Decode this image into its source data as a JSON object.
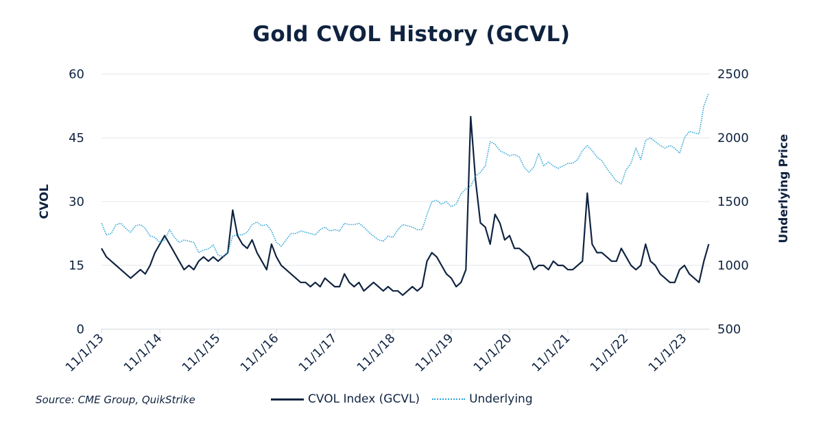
{
  "chart_data": {
    "type": "line",
    "title": "Gold CVOL History (GCVL)",
    "ylabel": "CVOL",
    "y2label": "Underlying Price",
    "ylim": [
      0,
      60
    ],
    "y2lim": [
      500,
      2500
    ],
    "yticks": [
      "0",
      "15",
      "30",
      "45",
      "60"
    ],
    "y2ticks": [
      "500",
      "1000",
      "1500",
      "2000",
      "2500"
    ],
    "xticks": [
      "11/1/13",
      "11/1/14",
      "11/1/15",
      "11/1/16",
      "11/1/17",
      "11/1/18",
      "11/1/19",
      "11/1/20",
      "11/1/21",
      "11/1/22",
      "11/1/23"
    ],
    "grid": true,
    "legend_position": "bottom",
    "x": [
      "2013-11",
      "2013-12",
      "2014-01",
      "2014-02",
      "2014-03",
      "2014-04",
      "2014-05",
      "2014-06",
      "2014-07",
      "2014-08",
      "2014-09",
      "2014-10",
      "2014-11",
      "2014-12",
      "2015-01",
      "2015-02",
      "2015-03",
      "2015-04",
      "2015-05",
      "2015-06",
      "2015-07",
      "2015-08",
      "2015-09",
      "2015-10",
      "2015-11",
      "2015-12",
      "2016-01",
      "2016-02",
      "2016-03",
      "2016-04",
      "2016-05",
      "2016-06",
      "2016-07",
      "2016-08",
      "2016-09",
      "2016-10",
      "2016-11",
      "2016-12",
      "2017-01",
      "2017-02",
      "2017-03",
      "2017-04",
      "2017-05",
      "2017-06",
      "2017-07",
      "2017-08",
      "2017-09",
      "2017-10",
      "2017-11",
      "2017-12",
      "2018-01",
      "2018-02",
      "2018-03",
      "2018-04",
      "2018-05",
      "2018-06",
      "2018-07",
      "2018-08",
      "2018-09",
      "2018-10",
      "2018-11",
      "2018-12",
      "2019-01",
      "2019-02",
      "2019-03",
      "2019-04",
      "2019-05",
      "2019-06",
      "2019-07",
      "2019-08",
      "2019-09",
      "2019-10",
      "2019-11",
      "2019-12",
      "2020-01",
      "2020-02",
      "2020-03",
      "2020-04",
      "2020-05",
      "2020-06",
      "2020-07",
      "2020-08",
      "2020-09",
      "2020-10",
      "2020-11",
      "2020-12",
      "2021-01",
      "2021-02",
      "2021-03",
      "2021-04",
      "2021-05",
      "2021-06",
      "2021-07",
      "2021-08",
      "2021-09",
      "2021-10",
      "2021-11",
      "2021-12",
      "2022-01",
      "2022-02",
      "2022-03",
      "2022-04",
      "2022-05",
      "2022-06",
      "2022-07",
      "2022-08",
      "2022-09",
      "2022-10",
      "2022-11",
      "2022-12",
      "2023-01",
      "2023-02",
      "2023-03",
      "2023-04",
      "2023-05",
      "2023-06",
      "2023-07",
      "2023-08",
      "2023-09",
      "2023-10",
      "2023-11",
      "2023-12",
      "2024-01",
      "2024-02",
      "2024-03",
      "2024-04"
    ],
    "series": [
      {
        "name": "CVOL Index (GCVL)",
        "axis": "left",
        "color": "#0f2340",
        "style": "solid",
        "values": [
          19,
          17,
          16,
          15,
          14,
          13,
          12,
          13,
          14,
          13,
          15,
          18,
          20,
          22,
          20,
          18,
          16,
          14,
          15,
          14,
          16,
          17,
          16,
          17,
          16,
          17,
          18,
          28,
          22,
          20,
          19,
          21,
          18,
          16,
          14,
          20,
          17,
          15,
          14,
          13,
          12,
          11,
          11,
          10,
          11,
          10,
          12,
          11,
          10,
          10,
          13,
          11,
          10,
          11,
          9,
          10,
          11,
          10,
          9,
          10,
          9,
          9,
          8,
          9,
          10,
          9,
          10,
          16,
          18,
          17,
          15,
          13,
          12,
          10,
          11,
          14,
          50,
          35,
          25,
          24,
          20,
          27,
          25,
          21,
          22,
          19,
          19,
          18,
          17,
          14,
          15,
          15,
          14,
          16,
          15,
          15,
          14,
          14,
          15,
          16,
          32,
          20,
          18,
          18,
          17,
          16,
          16,
          19,
          17,
          15,
          14,
          15,
          20,
          16,
          15,
          13,
          12,
          11,
          11,
          14,
          15,
          13,
          12,
          11,
          16,
          20
        ]
      },
      {
        "name": "Underlying",
        "axis": "right",
        "color": "#2aa3d6",
        "style": "dotted",
        "values": [
          1330,
          1240,
          1250,
          1320,
          1330,
          1290,
          1260,
          1310,
          1320,
          1290,
          1230,
          1220,
          1180,
          1200,
          1280,
          1220,
          1180,
          1200,
          1190,
          1180,
          1100,
          1120,
          1130,
          1160,
          1080,
          1070,
          1100,
          1230,
          1240,
          1240,
          1260,
          1320,
          1340,
          1310,
          1320,
          1270,
          1180,
          1150,
          1200,
          1250,
          1250,
          1270,
          1260,
          1250,
          1240,
          1280,
          1300,
          1270,
          1280,
          1270,
          1330,
          1320,
          1320,
          1330,
          1300,
          1260,
          1230,
          1200,
          1190,
          1230,
          1220,
          1280,
          1320,
          1310,
          1300,
          1280,
          1280,
          1400,
          1500,
          1510,
          1480,
          1500,
          1460,
          1480,
          1560,
          1600,
          1620,
          1700,
          1730,
          1780,
          1970,
          1950,
          1900,
          1880,
          1860,
          1870,
          1850,
          1770,
          1730,
          1770,
          1880,
          1780,
          1810,
          1780,
          1760,
          1780,
          1800,
          1800,
          1830,
          1900,
          1940,
          1900,
          1850,
          1820,
          1760,
          1710,
          1660,
          1640,
          1750,
          1800,
          1920,
          1830,
          1980,
          2000,
          1970,
          1940,
          1920,
          1940,
          1920,
          1880,
          2000,
          2050,
          2040,
          2030,
          2250,
          2350
        ]
      }
    ]
  },
  "source": "Source: CME Group, QuikStrike"
}
